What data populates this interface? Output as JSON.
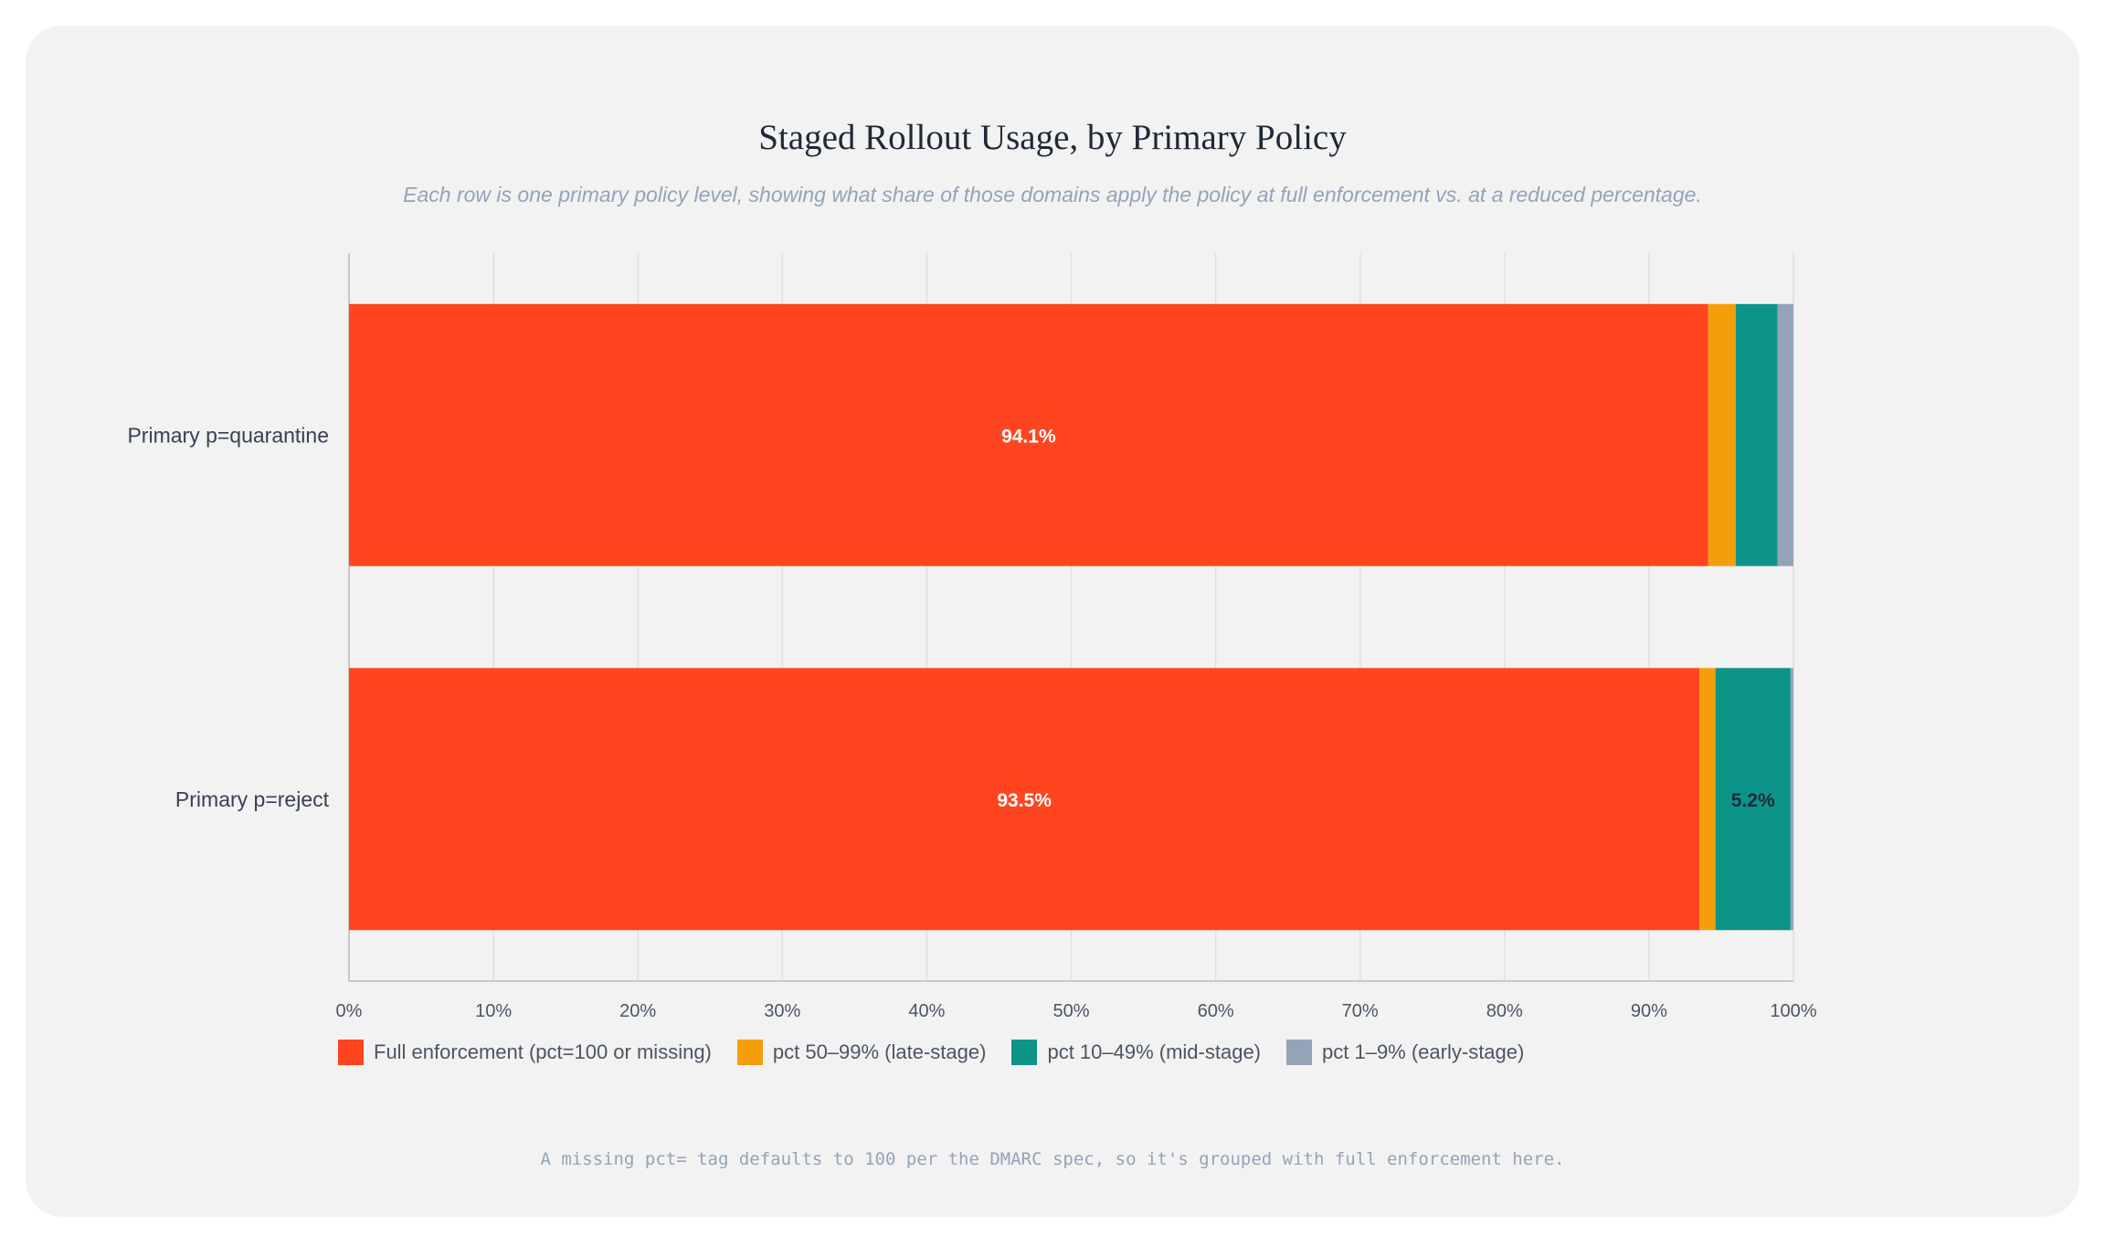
{
  "title": "Staged Rollout Usage, by Primary Policy",
  "subtitle": "Each row is one primary policy level, showing what share of those domains apply the policy at full enforcement vs. at a reduced percentage.",
  "footnote": "A missing pct= tag defaults to 100 per the DMARC spec, so it's grouped with full enforcement here.",
  "chart_data": {
    "type": "bar",
    "orientation": "horizontal",
    "stacked": true,
    "categories": [
      "Primary p=quarantine",
      "Primary p=reject"
    ],
    "series": [
      {
        "name": "Full enforcement (pct=100 or missing)",
        "color": "#ff4520",
        "values": [
          94.1,
          93.5
        ],
        "labels": [
          "94.1%",
          "93.5%"
        ],
        "label_color": "#ffffff"
      },
      {
        "name": "pct 50–99% (late-stage)",
        "color": "#f59e0b",
        "values": [
          1.9,
          1.1
        ],
        "labels": [
          "",
          ""
        ],
        "label_color": "#1f2937"
      },
      {
        "name": "pct 10–49% (mid-stage)",
        "color": "#0d9488",
        "values": [
          2.9,
          5.2
        ],
        "labels": [
          "",
          "5.2%"
        ],
        "label_color": "#1f2937"
      },
      {
        "name": "pct 1–9% (early-stage)",
        "color": "#94a3b8",
        "values": [
          1.1,
          0.2
        ],
        "labels": [
          "",
          ""
        ],
        "label_color": "#1f2937"
      }
    ],
    "xlim": [
      0,
      100
    ],
    "xticks": [
      "0%",
      "10%",
      "20%",
      "30%",
      "40%",
      "50%",
      "60%",
      "70%",
      "80%",
      "90%",
      "100%"
    ],
    "grid": true,
    "legend_position": "bottom-left"
  }
}
